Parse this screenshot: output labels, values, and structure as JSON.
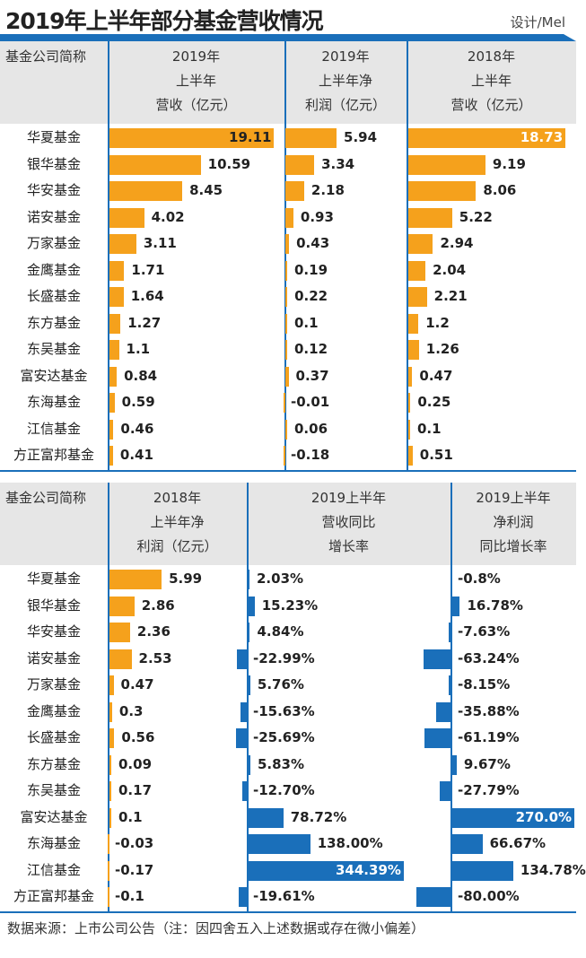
{
  "title": "2019年上半年部分基金营收情况",
  "credit": "设计/Mel",
  "footer": "数据来源：上市公司公告（注：因四舍五入上述数据或存在微小偏差）",
  "colors": {
    "orange": "#f5a11c",
    "blue": "#1a6fba",
    "header_bg": "#e6e6e6"
  },
  "chart_data": [
    {
      "type": "table-bar",
      "name_header": "基金公司简称",
      "categories": [
        "华夏基金",
        "银华基金",
        "华安基金",
        "诺安基金",
        "万家基金",
        "金鹰基金",
        "长盛基金",
        "东方基金",
        "东吴基金",
        "富安达基金",
        "东海基金",
        "江信基金",
        "方正富邦基金"
      ],
      "series": [
        {
          "name": "2019年\n上半年\n营收（亿元）",
          "values": [
            19.11,
            10.59,
            8.45,
            4.02,
            3.11,
            1.71,
            1.64,
            1.27,
            1.1,
            0.84,
            0.59,
            0.46,
            0.41
          ],
          "labels": [
            "19.11",
            "10.59",
            "8.45",
            "4.02",
            "3.11",
            "1.71",
            "1.64",
            "1.27",
            "1.1",
            "0.84",
            "0.59",
            "0.46",
            "0.41"
          ]
        },
        {
          "name": "2019年\n上半年净\n利润（亿元）",
          "values": [
            5.94,
            3.34,
            2.18,
            0.93,
            0.43,
            0.19,
            0.22,
            0.1,
            0.12,
            0.37,
            -0.01,
            0.06,
            -0.18
          ],
          "labels": [
            "5.94",
            "3.34",
            "2.18",
            "0.93",
            "0.43",
            "0.19",
            "0.22",
            "0.1",
            "0.12",
            "0.37",
            "-0.01",
            "0.06",
            "-0.18"
          ]
        },
        {
          "name": "2018年\n上半年\n营收（亿元）",
          "values": [
            18.73,
            9.19,
            8.06,
            5.22,
            2.94,
            2.04,
            2.21,
            1.2,
            1.26,
            0.47,
            0.25,
            0.1,
            0.51
          ],
          "labels": [
            "18.73",
            "9.19",
            "8.06",
            "5.22",
            "2.94",
            "2.04",
            "2.21",
            "1.2",
            "1.26",
            "0.47",
            "0.25",
            "0.1",
            "0.51"
          ]
        }
      ]
    },
    {
      "type": "table-bar",
      "name_header": "基金公司简称",
      "categories": [
        "华夏基金",
        "银华基金",
        "华安基金",
        "诺安基金",
        "万家基金",
        "金鹰基金",
        "长盛基金",
        "东方基金",
        "东吴基金",
        "富安达基金",
        "东海基金",
        "江信基金",
        "方正富邦基金"
      ],
      "series": [
        {
          "name": "2018年\n上半年净\n利润（亿元）",
          "values": [
            5.99,
            2.86,
            2.36,
            2.53,
            0.47,
            0.3,
            0.56,
            0.09,
            0.17,
            0.1,
            -0.03,
            -0.17,
            -0.1
          ],
          "labels": [
            "5.99",
            "2.86",
            "2.36",
            "2.53",
            "0.47",
            "0.3",
            "0.56",
            "0.09",
            "0.17",
            "0.1",
            "-0.03",
            "-0.17",
            "-0.1"
          ]
        },
        {
          "name": "2019上半年\n营收同比\n增长率",
          "unit": "%",
          "values": [
            2.03,
            15.23,
            4.84,
            -22.99,
            5.76,
            -15.63,
            -25.69,
            5.83,
            -12.7,
            78.72,
            138.0,
            344.39,
            -19.61
          ],
          "labels": [
            "2.03%",
            "15.23%",
            "4.84%",
            "-22.99%",
            "5.76%",
            "-15.63%",
            "-25.69%",
            "5.83%",
            "-12.70%",
            "78.72%",
            "138.00%",
            "344.39%",
            "-19.61%"
          ]
        },
        {
          "name": "2019上半年\n净利润\n同比增长率",
          "unit": "%",
          "values": [
            -0.8,
            16.78,
            -7.63,
            -63.24,
            -8.15,
            -35.88,
            -61.19,
            9.67,
            -27.79,
            270.0,
            66.67,
            134.78,
            -80.0
          ],
          "labels": [
            "-0.8%",
            "16.78%",
            "-7.63%",
            "-63.24%",
            "-8.15%",
            "-35.88%",
            "-61.19%",
            "9.67%",
            "-27.79%",
            "270.0%",
            "66.67%",
            "134.78%",
            "-80.00%"
          ]
        }
      ]
    }
  ]
}
